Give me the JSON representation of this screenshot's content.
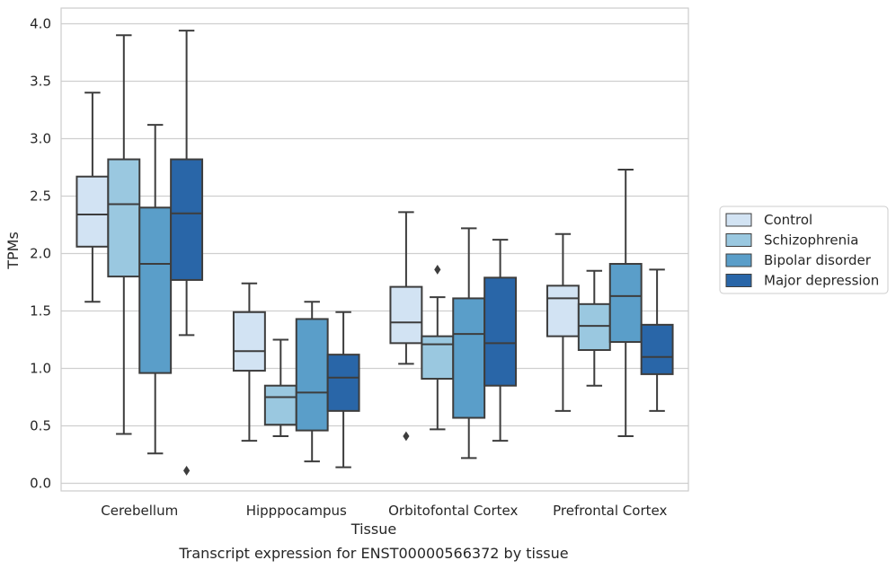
{
  "chart_data": {
    "type": "box",
    "xlabel": "Tissue",
    "ylabel": "TPMs",
    "caption": "Transcript expression for ENST00000566372 by tissue",
    "ylim": [
      -0.07,
      4.14
    ],
    "yticks": [
      "0.0",
      "0.5",
      "1.0",
      "1.5",
      "2.0",
      "2.5",
      "3.0",
      "3.5",
      "4.0"
    ],
    "grid": "horizontal",
    "legend_position": "right",
    "categories": [
      "Cerebellum",
      "Hipppocampus",
      "Orbitofontal Cortex",
      "Prefrontal Cortex"
    ],
    "series": [
      {
        "name": "Control",
        "color": "#d2e3f3",
        "boxes": [
          {
            "whislo": 1.58,
            "q1": 2.06,
            "med": 2.34,
            "q3": 2.67,
            "whishi": 3.4,
            "fliers": []
          },
          {
            "whislo": 0.37,
            "q1": 0.98,
            "med": 1.15,
            "q3": 1.49,
            "whishi": 1.74,
            "fliers": []
          },
          {
            "whislo": 1.04,
            "q1": 1.22,
            "med": 1.4,
            "q3": 1.71,
            "whishi": 2.36,
            "fliers": [
              0.41
            ]
          },
          {
            "whislo": 0.63,
            "q1": 1.28,
            "med": 1.61,
            "q3": 1.72,
            "whishi": 2.17,
            "fliers": []
          }
        ]
      },
      {
        "name": "Schizophrenia",
        "color": "#9ac8e0",
        "boxes": [
          {
            "whislo": 0.43,
            "q1": 1.8,
            "med": 2.43,
            "q3": 2.82,
            "whishi": 3.9,
            "fliers": []
          },
          {
            "whislo": 0.41,
            "q1": 0.51,
            "med": 0.75,
            "q3": 0.85,
            "whishi": 1.25,
            "fliers": []
          },
          {
            "whislo": 0.47,
            "q1": 0.91,
            "med": 1.21,
            "q3": 1.28,
            "whishi": 1.62,
            "fliers": [
              1.86
            ]
          },
          {
            "whislo": 0.85,
            "q1": 1.16,
            "med": 1.37,
            "q3": 1.56,
            "whishi": 1.85,
            "fliers": []
          }
        ]
      },
      {
        "name": "Bipolar disorder",
        "color": "#5a9ec9",
        "boxes": [
          {
            "whislo": 0.26,
            "q1": 0.96,
            "med": 1.91,
            "q3": 2.4,
            "whishi": 3.12,
            "fliers": []
          },
          {
            "whislo": 0.19,
            "q1": 0.46,
            "med": 0.79,
            "q3": 1.43,
            "whishi": 1.58,
            "fliers": []
          },
          {
            "whislo": 0.22,
            "q1": 0.57,
            "med": 1.3,
            "q3": 1.61,
            "whishi": 2.22,
            "fliers": []
          },
          {
            "whislo": 0.41,
            "q1": 1.23,
            "med": 1.63,
            "q3": 1.91,
            "whishi": 2.73,
            "fliers": []
          }
        ]
      },
      {
        "name": "Major depression",
        "color": "#2966a8",
        "boxes": [
          {
            "whislo": 1.29,
            "q1": 1.77,
            "med": 2.35,
            "q3": 2.82,
            "whishi": 3.94,
            "fliers": [
              0.11
            ]
          },
          {
            "whislo": 0.14,
            "q1": 0.63,
            "med": 0.92,
            "q3": 1.12,
            "whishi": 1.49,
            "fliers": []
          },
          {
            "whislo": 0.37,
            "q1": 0.85,
            "med": 1.22,
            "q3": 1.79,
            "whishi": 2.12,
            "fliers": []
          },
          {
            "whislo": 0.63,
            "q1": 0.95,
            "med": 1.1,
            "q3": 1.38,
            "whishi": 1.86,
            "fliers": []
          }
        ]
      }
    ],
    "colors": {
      "grid": "#cfcfcf",
      "frame": "#cccccc",
      "box_edge": "#3d3d3d",
      "text": "#262626"
    }
  }
}
